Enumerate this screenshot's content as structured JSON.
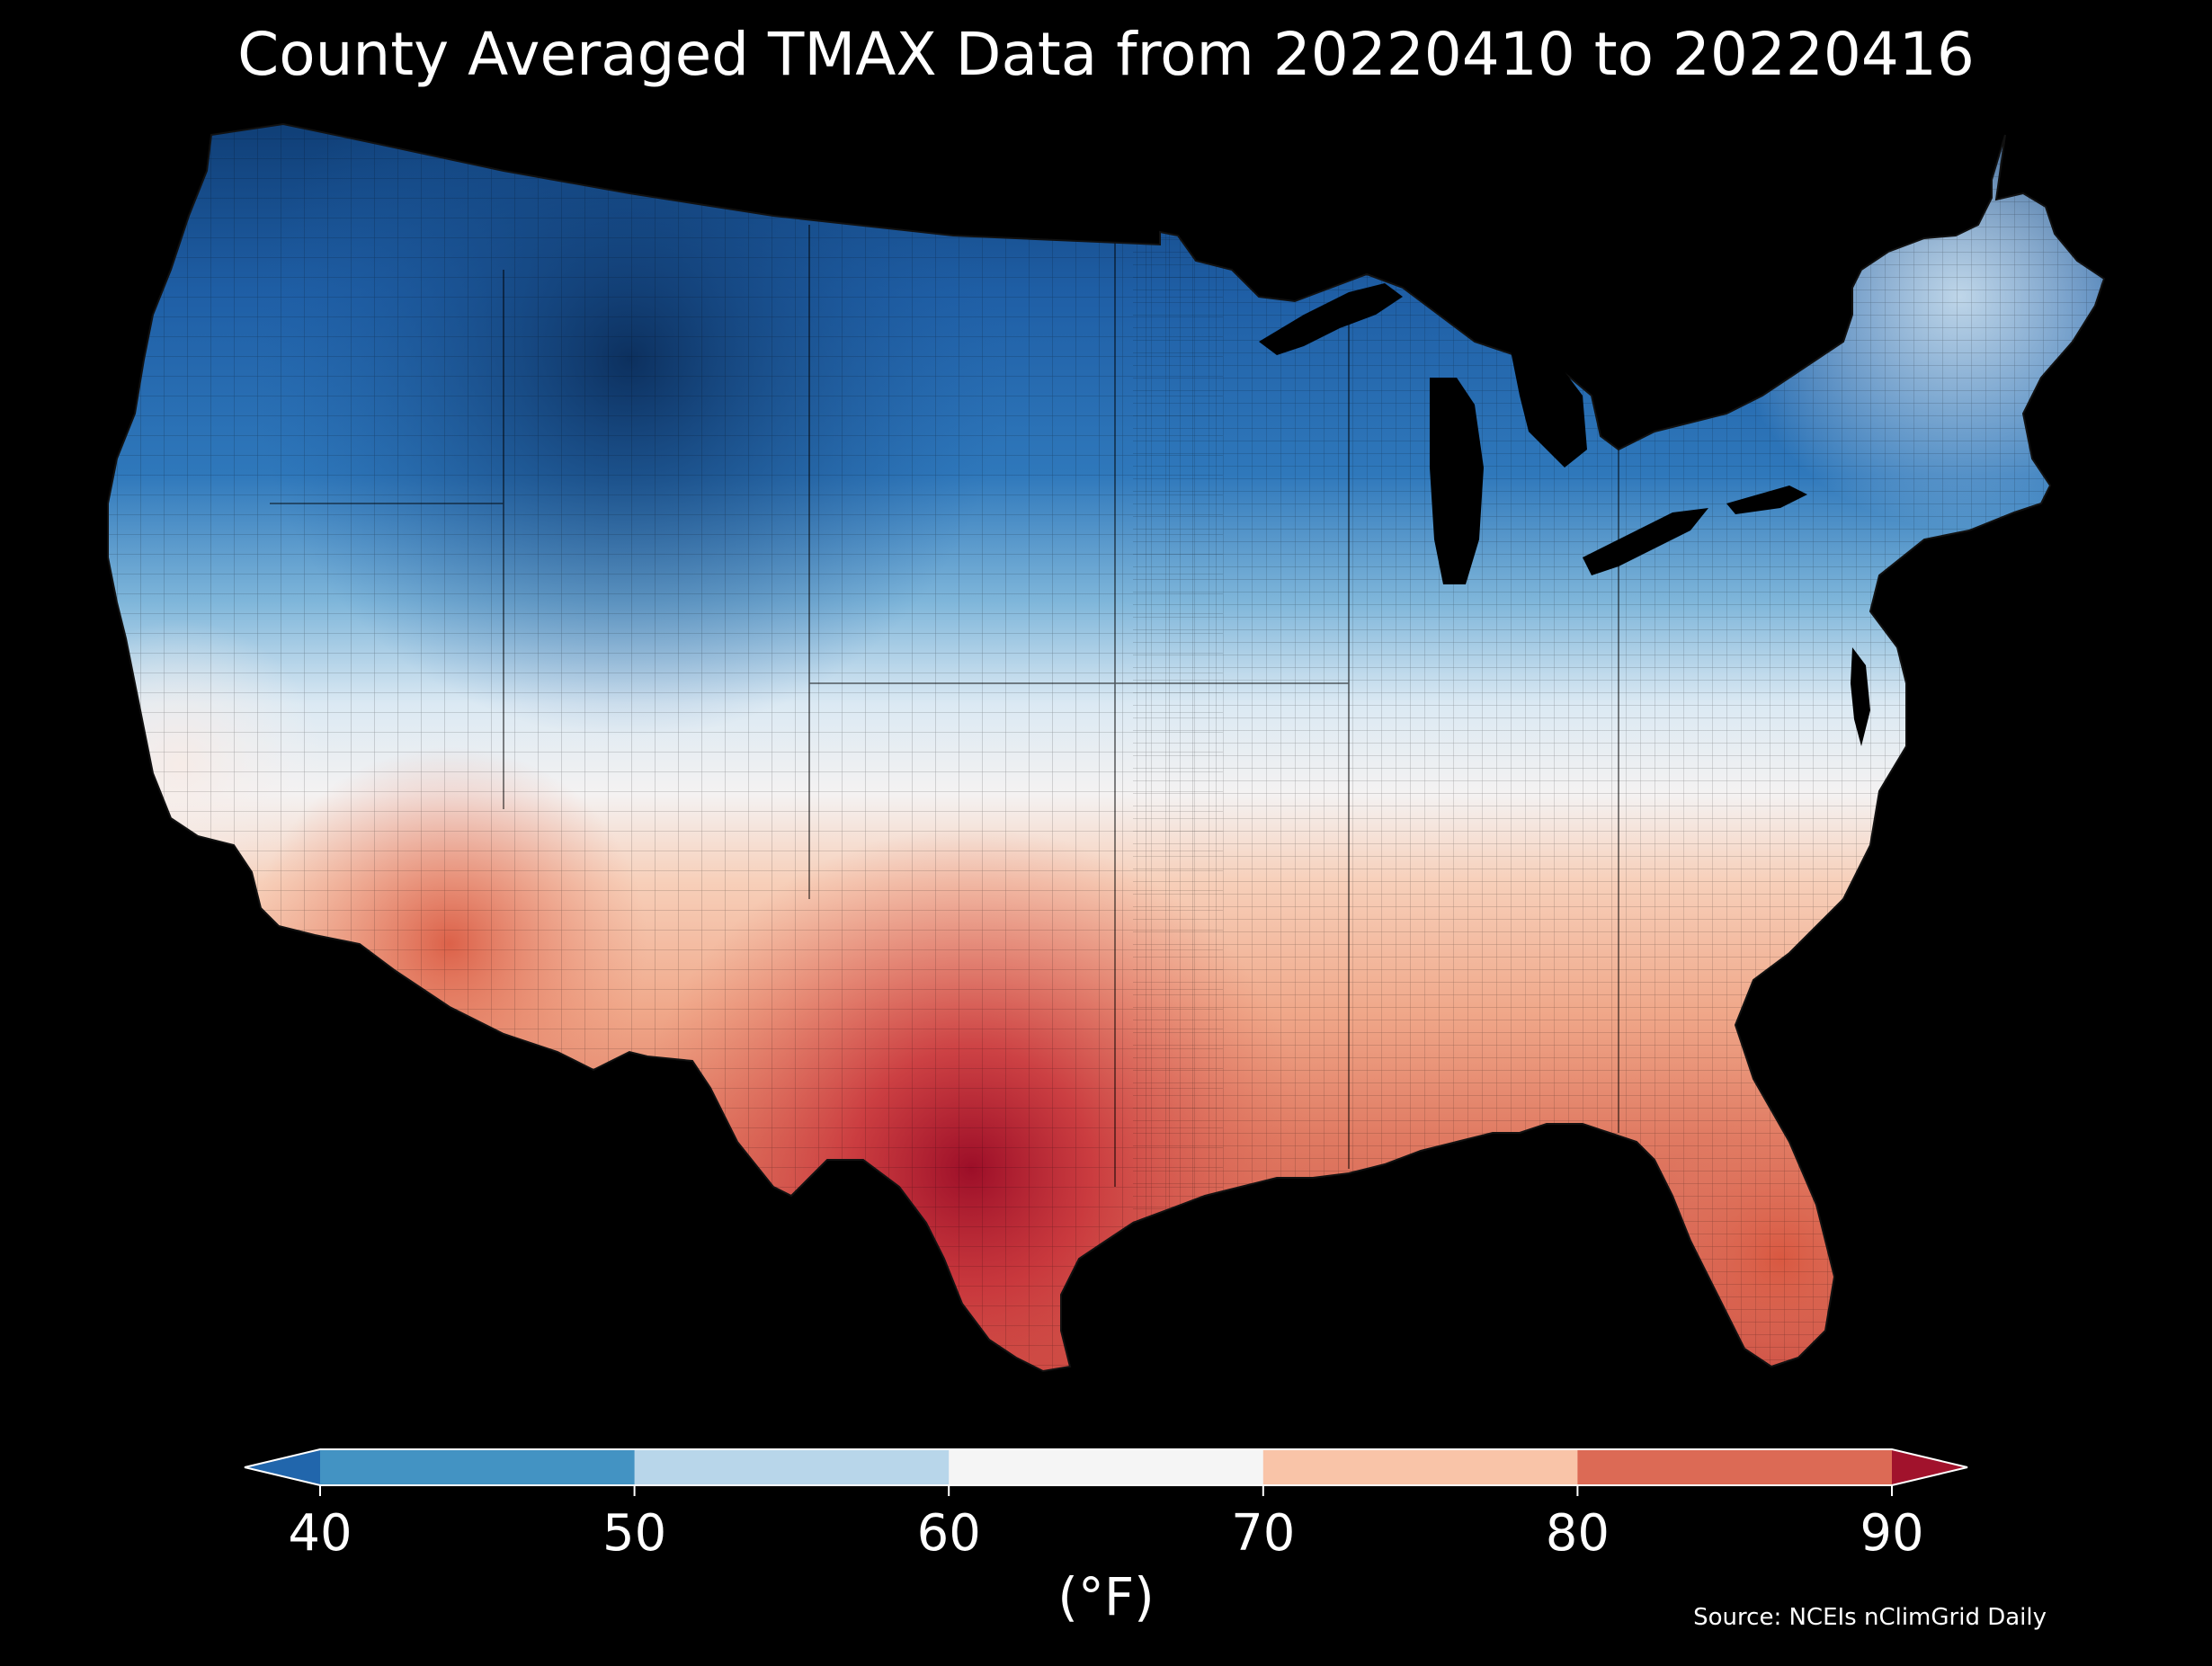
{
  "title": "County Averaged TMAX Data from 20220410 to 20220416",
  "colorbar": {
    "unit": "(°F)",
    "tick_labels": [
      "40",
      "50",
      "60",
      "70",
      "80",
      "90"
    ],
    "bins": [
      {
        "range": "<40",
        "color": "#2166ac"
      },
      {
        "range": "40-50",
        "color": "#4393c3"
      },
      {
        "range": "50-60",
        "color": "#b8d6ea"
      },
      {
        "range": "60-70",
        "color": "#f5f5f5"
      },
      {
        "range": "70-80",
        "color": "#f9c4a8"
      },
      {
        "range": "80-90",
        "color": "#dc6a55"
      },
      {
        "range": ">90",
        "color": "#a1122c"
      }
    ]
  },
  "source": "Source: NCEIs nClimGrid Daily",
  "colors": {
    "background": "#000000",
    "text": "#ffffff",
    "water": "#000000"
  }
}
